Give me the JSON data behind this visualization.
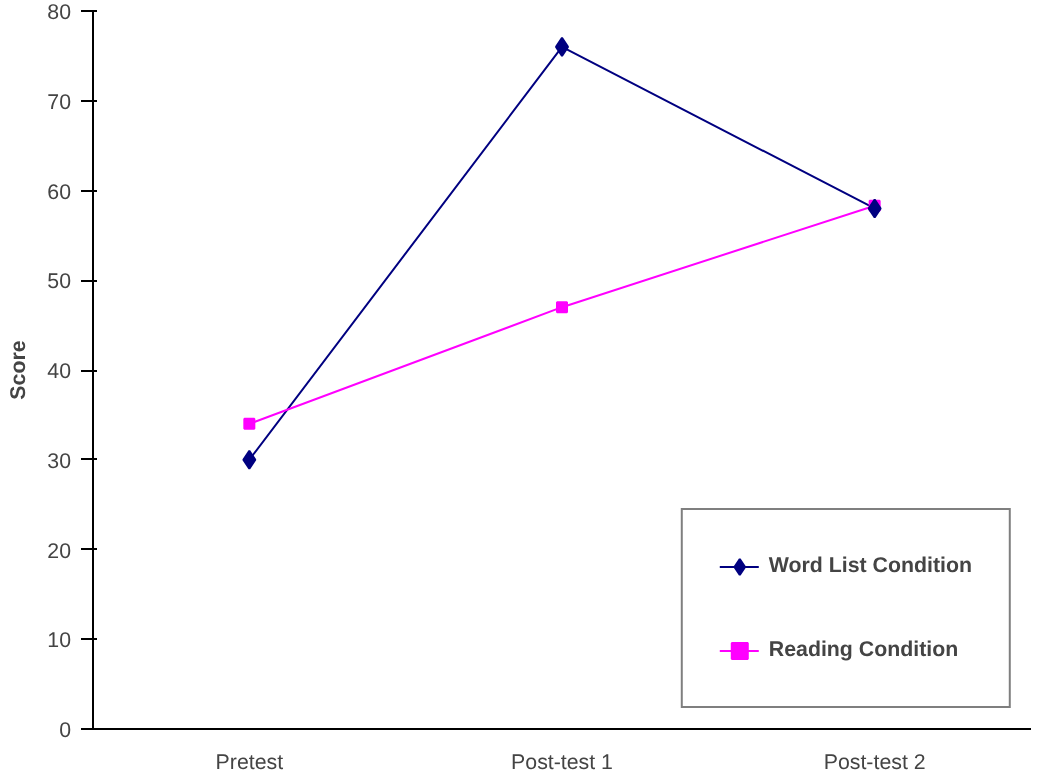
{
  "chart_data": {
    "type": "line",
    "ylabel": "Score",
    "categories": [
      "Pretest",
      "Post-test 1",
      "Post-test 2"
    ],
    "series": [
      {
        "name": "Word List Condition",
        "color": "#000080",
        "marker": "diamond",
        "values": [
          30,
          76,
          58
        ]
      },
      {
        "name": "Reading Condition",
        "color": "#ff00ff",
        "marker": "square",
        "values": [
          34,
          47,
          58.3
        ]
      }
    ],
    "ylim": [
      0,
      80
    ],
    "yticks": [
      0,
      10,
      20,
      30,
      40,
      50,
      60,
      70,
      80
    ],
    "grid": false,
    "legend": "bottom right",
    "line_style": "solid"
  }
}
